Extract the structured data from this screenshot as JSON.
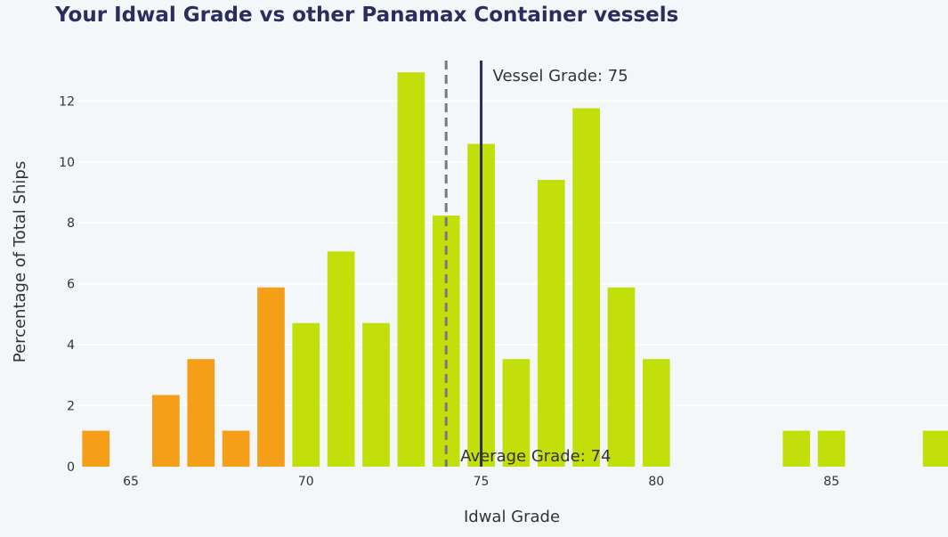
{
  "chart_data": {
    "type": "bar",
    "title": "Your Idwal Grade vs other Panamax Container vessels",
    "xlabel": "Idwal Grade",
    "ylabel": "Percentage of Total Ships",
    "xlim": [
      63.5,
      88.2
    ],
    "ylim": [
      0,
      13.5
    ],
    "x_ticks": [
      65,
      70,
      75,
      80,
      85
    ],
    "y_ticks": [
      0,
      2,
      4,
      6,
      8,
      10,
      12
    ],
    "grid": true,
    "bars": [
      {
        "x": 64,
        "value": 1.18,
        "color": "#f59e18"
      },
      {
        "x": 66,
        "value": 2.35,
        "color": "#f59e18"
      },
      {
        "x": 67,
        "value": 3.53,
        "color": "#f59e18"
      },
      {
        "x": 68,
        "value": 1.18,
        "color": "#f59e18"
      },
      {
        "x": 69,
        "value": 5.88,
        "color": "#f59e18"
      },
      {
        "x": 70,
        "value": 4.71,
        "color": "#c2df0a"
      },
      {
        "x": 71,
        "value": 7.06,
        "color": "#c2df0a"
      },
      {
        "x": 72,
        "value": 4.71,
        "color": "#c2df0a"
      },
      {
        "x": 73,
        "value": 12.94,
        "color": "#c2df0a"
      },
      {
        "x": 74,
        "value": 8.24,
        "color": "#c2df0a"
      },
      {
        "x": 75,
        "value": 10.59,
        "color": "#c2df0a"
      },
      {
        "x": 76,
        "value": 3.53,
        "color": "#c2df0a"
      },
      {
        "x": 77,
        "value": 9.41,
        "color": "#c2df0a"
      },
      {
        "x": 78,
        "value": 11.76,
        "color": "#c2df0a"
      },
      {
        "x": 79,
        "value": 5.88,
        "color": "#c2df0a"
      },
      {
        "x": 80,
        "value": 3.53,
        "color": "#c2df0a"
      },
      {
        "x": 84,
        "value": 1.18,
        "color": "#c2df0a"
      },
      {
        "x": 85,
        "value": 1.18,
        "color": "#c2df0a"
      },
      {
        "x": 88,
        "value": 1.18,
        "color": "#c2df0a"
      }
    ],
    "reference_lines": [
      {
        "x": 75,
        "label": "Vessel Grade: 75",
        "style": "solid",
        "color": "#2b2d5e"
      },
      {
        "x": 74,
        "label": "Average Grade: 74",
        "style": "dashed",
        "color": "#7a7a7a"
      }
    ]
  }
}
